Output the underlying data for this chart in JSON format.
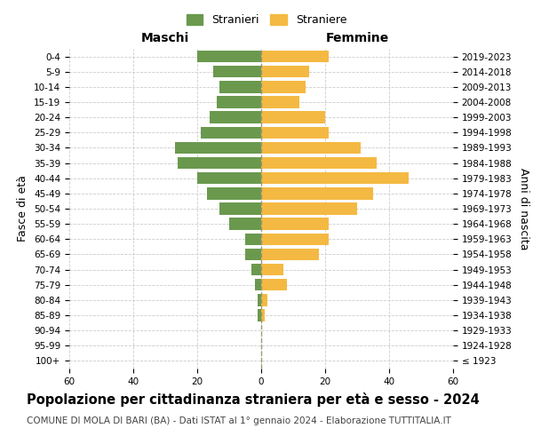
{
  "age_groups": [
    "100+",
    "95-99",
    "90-94",
    "85-89",
    "80-84",
    "75-79",
    "70-74",
    "65-69",
    "60-64",
    "55-59",
    "50-54",
    "45-49",
    "40-44",
    "35-39",
    "30-34",
    "25-29",
    "20-24",
    "15-19",
    "10-14",
    "5-9",
    "0-4"
  ],
  "birth_years": [
    "≤ 1923",
    "1924-1928",
    "1929-1933",
    "1934-1938",
    "1939-1943",
    "1944-1948",
    "1949-1953",
    "1954-1958",
    "1959-1963",
    "1964-1968",
    "1969-1973",
    "1974-1978",
    "1979-1983",
    "1984-1988",
    "1989-1993",
    "1994-1998",
    "1999-2003",
    "2004-2008",
    "2009-2013",
    "2014-2018",
    "2019-2023"
  ],
  "males": [
    0,
    0,
    0,
    1,
    1,
    2,
    3,
    5,
    5,
    10,
    13,
    17,
    20,
    26,
    27,
    19,
    16,
    14,
    13,
    15,
    20
  ],
  "females": [
    0,
    0,
    0,
    1,
    2,
    8,
    7,
    18,
    21,
    21,
    30,
    35,
    46,
    36,
    31,
    21,
    20,
    12,
    14,
    15,
    21
  ],
  "male_color": "#6a994e",
  "female_color": "#f4b942",
  "background_color": "#ffffff",
  "grid_color": "#cccccc",
  "dashed_line_color": "#999977",
  "title": "Popolazione per cittadinanza straniera per età e sesso - 2024",
  "subtitle": "COMUNE DI MOLA DI BARI (BA) - Dati ISTAT al 1° gennaio 2024 - Elaborazione TUTTITALIA.IT",
  "legend_male": "Stranieri",
  "legend_female": "Straniere",
  "label_maschi": "Maschi",
  "label_femmine": "Femmine",
  "ylabel_left": "Fasce di età",
  "ylabel_right": "Anni di nascita",
  "xlim": 60,
  "title_fontsize": 10.5,
  "subtitle_fontsize": 7.5,
  "axis_label_fontsize": 9,
  "tick_fontsize": 7.5,
  "legend_fontsize": 9
}
